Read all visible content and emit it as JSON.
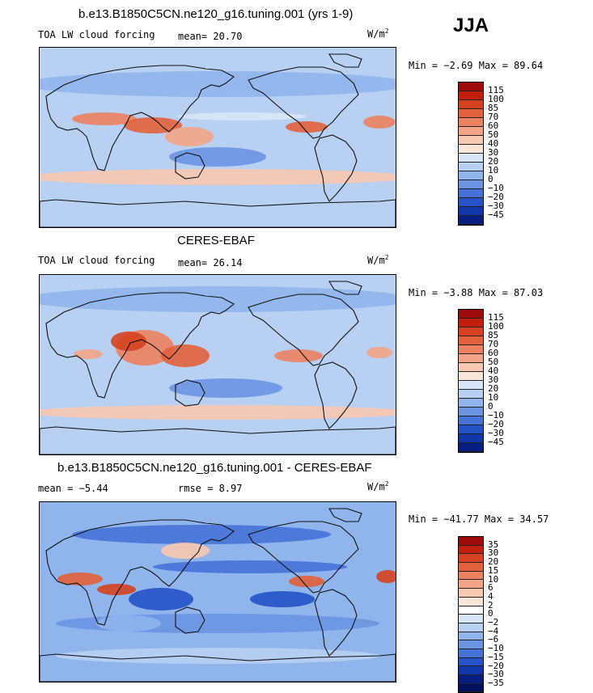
{
  "season": "JJA",
  "units": {
    "base": "W/m",
    "exp": "2"
  },
  "panels": [
    {
      "title": "b.e13.B1850C5CN.ne120_g16.tuning.001 (yrs 1-9)",
      "left": "TOA LW cloud forcing",
      "stat": "mean=  20.70",
      "minmax": "Min =  −2.69 Max =  89.64",
      "cbar_labels": [
        "115",
        "100",
        "85",
        "70",
        "60",
        "50",
        "40",
        "30",
        "20",
        "10",
        "0",
        "−10",
        "−20",
        "−30",
        "−45"
      ],
      "cbar_colors": [
        "#9e0a0a",
        "#c21d0d",
        "#d6421f",
        "#e2603b",
        "#ec8160",
        "#f3a487",
        "#f8c8b0",
        "#fbe6d9",
        "#d8e6f7",
        "#b8d0f2",
        "#90b4ec",
        "#6b95e3",
        "#4672d8",
        "#2453c8",
        "#0f37a9",
        "#061e82"
      ]
    },
    {
      "title": "CERES-EBAF",
      "left": "TOA LW cloud forcing",
      "stat": "mean=  26.14",
      "minmax": "Min =  −3.88 Max =  87.03",
      "cbar_labels": [
        "115",
        "100",
        "85",
        "70",
        "60",
        "50",
        "40",
        "30",
        "20",
        "10",
        "0",
        "−10",
        "−20",
        "−30",
        "−45"
      ],
      "cbar_colors": [
        "#9e0a0a",
        "#c21d0d",
        "#d6421f",
        "#e2603b",
        "#ec8160",
        "#f3a487",
        "#f8c8b0",
        "#fbe6d9",
        "#d8e6f7",
        "#b8d0f2",
        "#90b4ec",
        "#6b95e3",
        "#4672d8",
        "#2453c8",
        "#0f37a9",
        "#061e82"
      ]
    },
    {
      "title": "b.e13.B1850C5CN.ne120_g16.tuning.001 - CERES-EBAF",
      "left": "mean =  −5.44",
      "stat": "rmse =   8.97",
      "minmax": "Min = −41.77 Max =  34.57",
      "cbar_labels": [
        "35",
        "30",
        "20",
        "15",
        "10",
        "6",
        "4",
        "2",
        "0",
        "−2",
        "−4",
        "−6",
        "−10",
        "−15",
        "−20",
        "−30",
        "−35"
      ],
      "cbar_colors": [
        "#9e0a0a",
        "#c21d0d",
        "#d6421f",
        "#e2603b",
        "#ec8160",
        "#f3a487",
        "#f8c8b0",
        "#fbe6d9",
        "#ffffff",
        "#d8e6f7",
        "#b8d0f2",
        "#90b4ec",
        "#6b95e3",
        "#4672d8",
        "#2453c8",
        "#0f37a9",
        "#061e82",
        "#03125e"
      ]
    }
  ]
}
